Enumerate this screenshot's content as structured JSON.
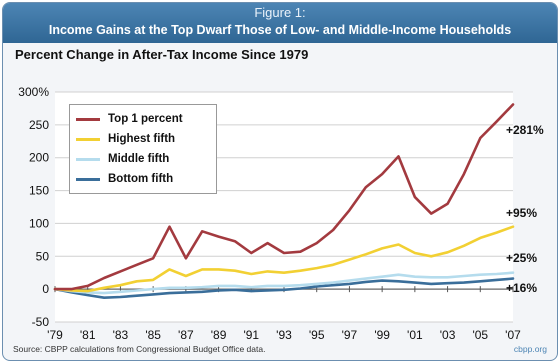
{
  "header": {
    "figure_label": "Figure 1:",
    "title": "Income Gains at the Top Dwarf Those of Low- and Middle-Income Households"
  },
  "subtitle": "Percent Change in After-Tax Income Since 1979",
  "footer": {
    "source": "Source: CBPP calculations from Congressional Budget Office data.",
    "credit": "cbpp.org"
  },
  "chart_data": {
    "type": "line",
    "title": "Percent Change in After-Tax Income Since 1979",
    "xlabel": "",
    "ylabel": "",
    "x": [
      1979,
      1980,
      1981,
      1982,
      1983,
      1984,
      1985,
      1986,
      1987,
      1988,
      1989,
      1990,
      1991,
      1992,
      1993,
      1994,
      1995,
      1996,
      1997,
      1998,
      1999,
      2000,
      2001,
      2002,
      2003,
      2004,
      2005,
      2006,
      2007
    ],
    "x_tick_labels": [
      "'79",
      "'81",
      "'83",
      "'85",
      "'87",
      "'89",
      "'91",
      "'93",
      "'95",
      "'97",
      "'99",
      "'01",
      "'03",
      "'05",
      "'07"
    ],
    "x_tick_values": [
      1979,
      1981,
      1983,
      1985,
      1987,
      1989,
      1991,
      1993,
      1995,
      1997,
      1999,
      2001,
      2003,
      2005,
      2007
    ],
    "ylim": [
      -50,
      300
    ],
    "y_ticks": [
      -50,
      0,
      50,
      100,
      150,
      200,
      250,
      300
    ],
    "y_tick_labels": [
      "-50",
      "0",
      "50",
      "100",
      "150",
      "200",
      "250",
      "300%"
    ],
    "grid": "horizontal",
    "legend_position": "top-left",
    "series": [
      {
        "name": "Top 1 percent",
        "color": "#a33a3f",
        "end_label": "+281%",
        "values": [
          0,
          0,
          5,
          17,
          27,
          37,
          47,
          95,
          47,
          88,
          80,
          73,
          55,
          70,
          55,
          57,
          70,
          90,
          120,
          155,
          175,
          202,
          140,
          115,
          130,
          175,
          230,
          255,
          281
        ]
      },
      {
        "name": "Highest fifth",
        "color": "#f2d033",
        "end_label": "+95%",
        "values": [
          0,
          -2,
          -3,
          2,
          6,
          12,
          14,
          30,
          20,
          30,
          30,
          28,
          23,
          27,
          25,
          28,
          32,
          37,
          45,
          53,
          62,
          68,
          55,
          50,
          56,
          66,
          78,
          86,
          95
        ]
      },
      {
        "name": "Middle fifth",
        "color": "#b5dced",
        "end_label": "+25%",
        "values": [
          0,
          -3,
          -5,
          -6,
          -4,
          -2,
          0,
          2,
          2,
          3,
          5,
          5,
          3,
          5,
          5,
          6,
          8,
          10,
          13,
          16,
          19,
          22,
          19,
          18,
          18,
          20,
          22,
          23,
          25
        ]
      },
      {
        "name": "Bottom fifth",
        "color": "#3a6e9a",
        "end_label": "+16%",
        "values": [
          0,
          -5,
          -9,
          -13,
          -12,
          -10,
          -8,
          -6,
          -5,
          -4,
          -2,
          -1,
          -3,
          -2,
          -1,
          1,
          4,
          6,
          8,
          11,
          13,
          12,
          10,
          8,
          9,
          10,
          12,
          14,
          16
        ]
      }
    ]
  }
}
